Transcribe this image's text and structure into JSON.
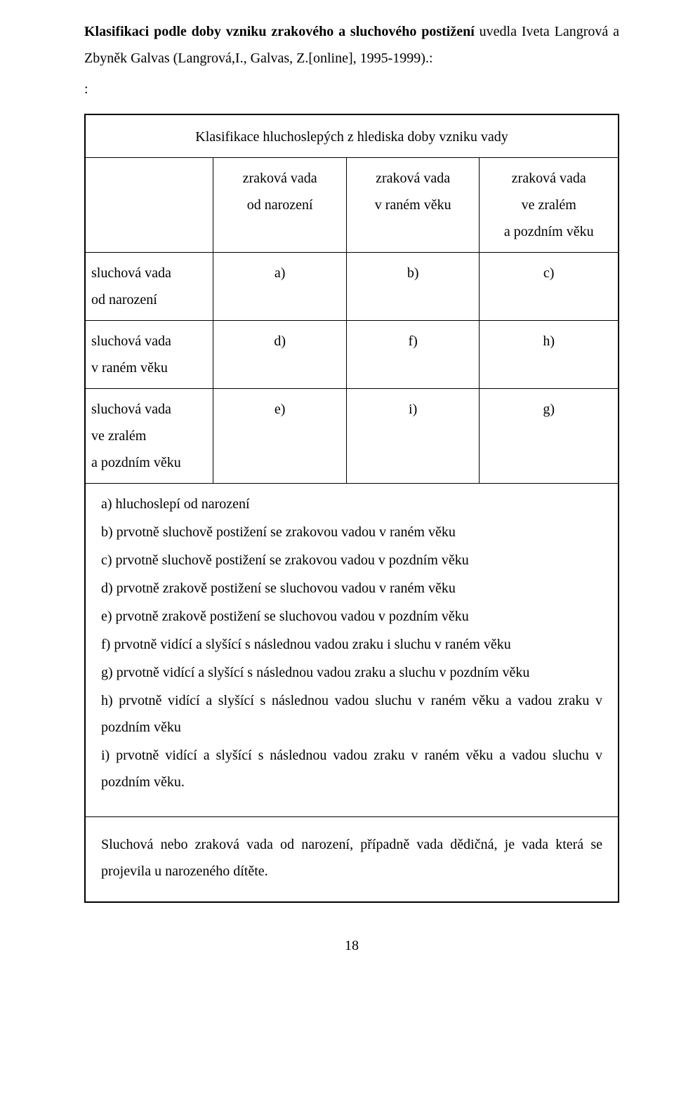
{
  "intro": {
    "bold": "Klasifikaci podle doby vzniku zrakového a sluchového postižení ",
    "rest": "uvedla Iveta Langrová a Zbyněk Galvas (Langrová,I., Galvas, Z.[online], 1995-1999).:",
    "colon": ":"
  },
  "table": {
    "title": "Klasifikace hluchoslepých z hlediska doby vzniku vady",
    "col_headers": [
      {
        "l1": "zraková vada",
        "l2": "od narození"
      },
      {
        "l1": "zraková vada",
        "l2": "v raném věku"
      },
      {
        "l1": "zraková vada",
        "l2": "ve zralém",
        "l3": "a pozdním věku"
      }
    ],
    "rows": [
      {
        "hdr_l1": "sluchová vada",
        "hdr_l2": "od narození",
        "a": "a)",
        "b": "b)",
        "c": "c)"
      },
      {
        "hdr_l1": "sluchová vada",
        "hdr_l2": "v raném věku",
        "a": "d)",
        "b": "f)",
        "c": "h)"
      },
      {
        "hdr_l1": "sluchová vada",
        "hdr_l2": "ve zralém",
        "hdr_l3": "a pozdním věku",
        "a": "e)",
        "b": "i)",
        "c": "g)"
      }
    ]
  },
  "explanations": [
    "a) hluchoslepí od narození",
    "b) prvotně sluchově postižení se zrakovou vadou v raném věku",
    "c) prvotně sluchově postižení se zrakovou vadou v pozdním věku",
    "d) prvotně zrakově postižení se sluchovou vadou v raném věku",
    "e) prvotně zrakově postižení se sluchovou vadou v pozdním věku",
    "f) prvotně vidící a slyšící s následnou vadou zraku i sluchu v raném věku",
    "g) prvotně vidící a slyšící s následnou vadou zraku a sluchu v pozdním věku",
    "h) prvotně vidící a slyšící s následnou vadou sluchu v raném věku a vadou zraku v pozdním věku",
    "i) prvotně vidící a slyšící s následnou vadou zraku v raném věku a vadou sluchu v pozdním věku."
  ],
  "after": "Sluchová nebo zraková vada od narození, případně vada dědičná, je vada která se projevila u narozeného dítěte.",
  "page": "18"
}
